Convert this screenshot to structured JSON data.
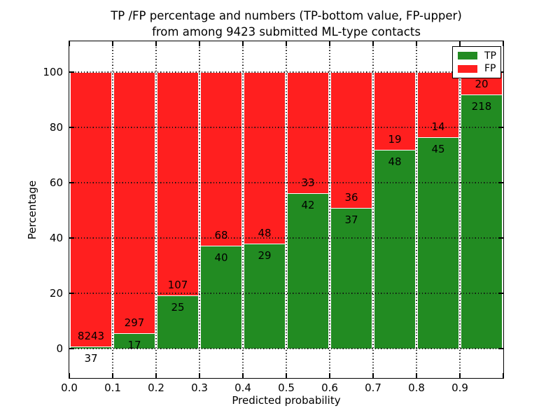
{
  "title": {
    "line1": "TP /FP percentage and numbers (TP-bottom value, FP-upper)",
    "line2": "from among 9423 submitted ML-type contacts"
  },
  "chart_data": {
    "type": "bar",
    "stacked": true,
    "normalized_to_percent": true,
    "title": "TP /FP percentage and numbers (TP-bottom value, FP-upper)\nfrom among 9423 submitted ML-type contacts",
    "xlabel": "Predicted probability",
    "ylabel": "Percentage",
    "total_contacts": 9423,
    "xlim": [
      0.0,
      1.0
    ],
    "grid": true,
    "x_tick_labels": [
      "0.0",
      "0.1",
      "0.2",
      "0.3",
      "0.4",
      "0.5",
      "0.6",
      "0.7",
      "0.8",
      "0.9"
    ],
    "y_ticks": [
      0,
      20,
      40,
      60,
      80,
      100
    ],
    "legend": {
      "position": "upper right",
      "entries": [
        {
          "label": "TP",
          "color": "#228b22"
        },
        {
          "label": "FP",
          "color": "#ff1f1f"
        }
      ]
    },
    "bins": [
      {
        "range": [
          0.0,
          0.1
        ],
        "tp": 37,
        "fp": 8243
      },
      {
        "range": [
          0.1,
          0.2
        ],
        "tp": 17,
        "fp": 297
      },
      {
        "range": [
          0.2,
          0.3
        ],
        "tp": 25,
        "fp": 107
      },
      {
        "range": [
          0.3,
          0.4
        ],
        "tp": 40,
        "fp": 68
      },
      {
        "range": [
          0.4,
          0.5
        ],
        "tp": 29,
        "fp": 48
      },
      {
        "range": [
          0.5,
          0.6
        ],
        "tp": 42,
        "fp": 33
      },
      {
        "range": [
          0.6,
          0.7
        ],
        "tp": 37,
        "fp": 36
      },
      {
        "range": [
          0.7,
          0.8
        ],
        "tp": 48,
        "fp": 19
      },
      {
        "range": [
          0.8,
          0.9
        ],
        "tp": 45,
        "fp": 14
      },
      {
        "range": [
          0.9,
          1.0
        ],
        "tp": 218,
        "fp": 20
      }
    ]
  },
  "colors": {
    "tp": "#228b22",
    "fp": "#ff1f1f",
    "grid": "#111111",
    "frame": "#000000",
    "background": "#ffffff"
  }
}
